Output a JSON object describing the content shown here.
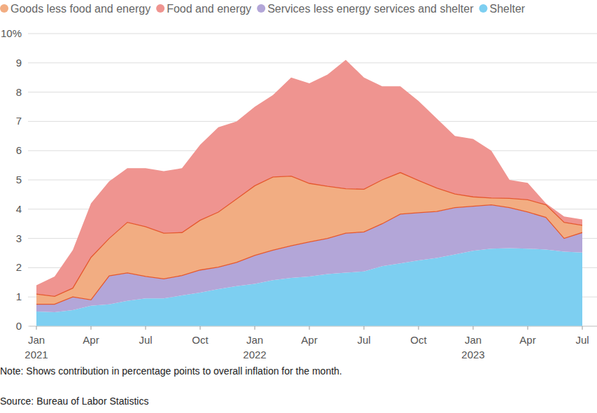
{
  "chart_data": {
    "type": "area",
    "stacked": true,
    "grid": true,
    "legend": "top-left",
    "categories": [
      "Jan 2021",
      null,
      null,
      "Apr",
      null,
      null,
      "Jul",
      null,
      null,
      "Oct",
      null,
      null,
      "Jan 2022",
      null,
      null,
      "Apr",
      null,
      null,
      "Jul",
      null,
      null,
      "Oct",
      null,
      null,
      "Jan 2023",
      null,
      null,
      "Apr",
      null,
      null,
      "Jul"
    ],
    "ylim": [
      0,
      10
    ],
    "yticks": [
      0,
      1,
      2,
      3,
      4,
      5,
      6,
      7,
      8,
      9,
      {
        "value": 10,
        "label": "10%"
      }
    ],
    "annotations": [
      "Note: Shows contribution in percentage points to overall inflation for the month.",
      "Source: Bureau of Labor Statistics"
    ],
    "series": [
      {
        "name": "Shelter",
        "color": "#7dcff1",
        "values": [
          0.5,
          0.48,
          0.55,
          0.7,
          0.75,
          0.87,
          0.95,
          0.95,
          1.05,
          1.15,
          1.27,
          1.37,
          1.45,
          1.57,
          1.65,
          1.7,
          1.78,
          1.83,
          1.87,
          2.05,
          2.15,
          2.25,
          2.33,
          2.45,
          2.58,
          2.65,
          2.67,
          2.65,
          2.62,
          2.55,
          2.52
        ]
      },
      {
        "name": "Services less energy services and shelter",
        "color": "#b3a6d8",
        "values": [
          0.25,
          0.27,
          0.45,
          0.2,
          0.97,
          0.95,
          0.75,
          0.67,
          0.68,
          0.77,
          0.75,
          0.81,
          0.97,
          1.03,
          1.1,
          1.18,
          1.22,
          1.35,
          1.35,
          1.45,
          1.68,
          1.63,
          1.59,
          1.6,
          1.52,
          1.5,
          1.38,
          1.25,
          1.1,
          0.45,
          0.68
        ]
      },
      {
        "name": "Goods less food and energy",
        "color": "#f2ad82",
        "values": [
          0.35,
          0.27,
          0.3,
          1.45,
          1.28,
          1.73,
          1.7,
          1.56,
          1.47,
          1.7,
          1.88,
          2.17,
          2.38,
          2.5,
          2.38,
          2.0,
          1.78,
          1.52,
          1.46,
          1.5,
          1.42,
          1.1,
          0.8,
          0.47,
          0.32,
          0.23,
          0.32,
          0.42,
          0.43,
          0.55,
          0.25
        ]
      },
      {
        "name": "Food and energy",
        "color": "#ef9490",
        "values": [
          0.3,
          0.68,
          1.3,
          1.85,
          1.95,
          1.85,
          2.0,
          2.12,
          2.2,
          2.58,
          2.9,
          2.65,
          2.7,
          2.8,
          3.37,
          3.42,
          3.82,
          4.4,
          3.82,
          3.2,
          2.95,
          2.72,
          2.38,
          1.98,
          1.98,
          1.62,
          0.63,
          0.58,
          0.05,
          0.2,
          0.2
        ]
      }
    ]
  }
}
